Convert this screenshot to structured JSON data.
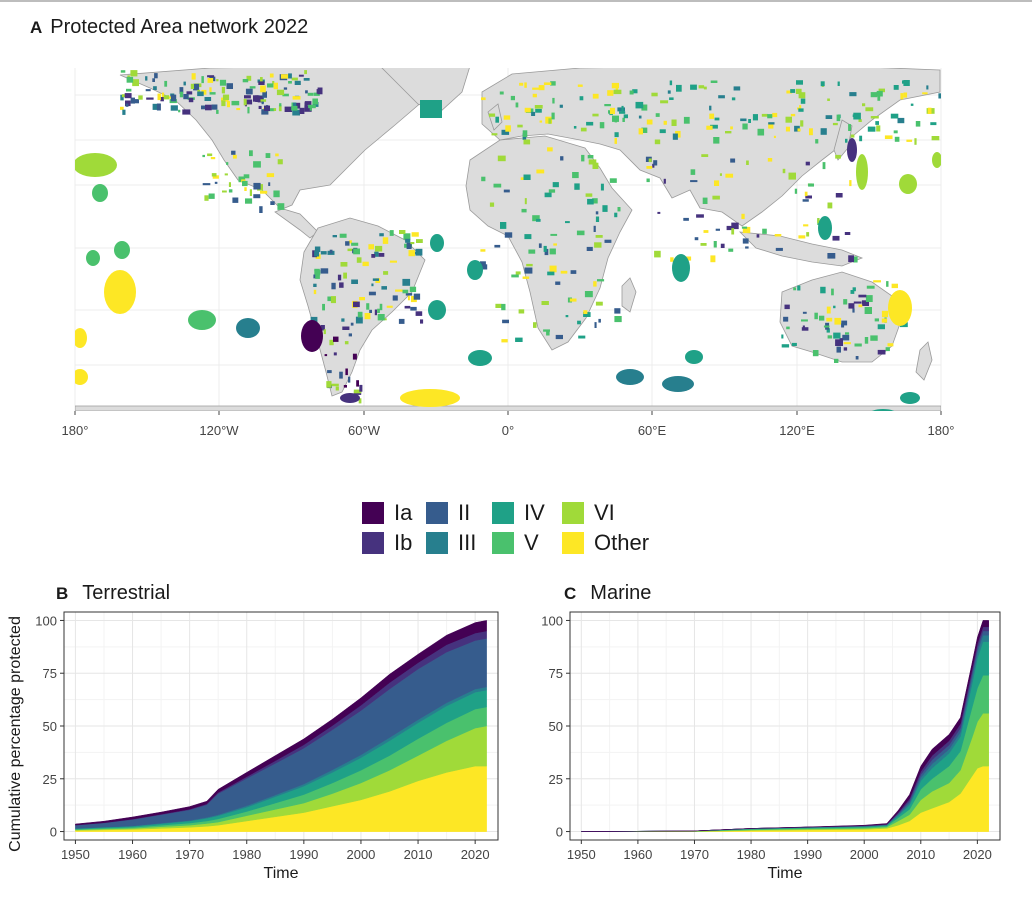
{
  "panel_a": {
    "letter": "A",
    "title": "Protected Area network 2022",
    "lon_labels": [
      "180°",
      "120°W",
      "60°W",
      "0°",
      "60°E",
      "120°E",
      "180°"
    ]
  },
  "legend": {
    "items": [
      {
        "label": "Ia",
        "color": "#440154"
      },
      {
        "label": "Ib",
        "color": "#46327e"
      },
      {
        "label": "II",
        "color": "#365c8d"
      },
      {
        "label": "III",
        "color": "#277f8e"
      },
      {
        "label": "IV",
        "color": "#1fa187"
      },
      {
        "label": "V",
        "color": "#4ac16d"
      },
      {
        "label": "VI",
        "color": "#a0da39"
      },
      {
        "label": "Other",
        "color": "#fde725"
      }
    ]
  },
  "panel_b": {
    "letter": "B",
    "title": "Terrestrial"
  },
  "panel_c": {
    "letter": "C",
    "title": "Marine"
  },
  "chart_data": [
    {
      "type": "area",
      "panel": "B",
      "title": "Terrestrial",
      "xlabel": "Time",
      "ylabel": "Cumulative percentage protected",
      "x_ticks": [
        1950,
        1960,
        1970,
        1980,
        1990,
        2000,
        2010,
        2020
      ],
      "y_ticks": [
        0,
        25,
        50,
        75,
        100
      ],
      "xlim": [
        1948,
        2024
      ],
      "ylim": [
        -4,
        104
      ],
      "stacked": true,
      "grid": true,
      "x": [
        1950,
        1955,
        1960,
        1965,
        1970,
        1973,
        1975,
        1980,
        1985,
        1990,
        1995,
        2000,
        2005,
        2010,
        2015,
        2020,
        2022
      ],
      "series": [
        {
          "name": "Other",
          "color": "#fde725",
          "values": [
            0.5,
            0.8,
            1,
            1.5,
            2,
            2.5,
            3,
            5,
            7,
            9,
            12,
            15,
            19,
            24,
            28,
            31,
            31
          ]
        },
        {
          "name": "VI",
          "color": "#a0da39",
          "values": [
            0.3,
            0.4,
            0.5,
            0.8,
            1,
            1.3,
            1.5,
            2.5,
            3.5,
            4.5,
            6,
            8,
            10,
            12,
            15,
            18,
            19
          ]
        },
        {
          "name": "V",
          "color": "#4ac16d",
          "values": [
            0.3,
            0.4,
            0.5,
            0.7,
            1,
            1.2,
            1.5,
            2,
            3,
            4,
            5,
            6,
            7,
            8,
            8.5,
            9,
            9
          ]
        },
        {
          "name": "IV",
          "color": "#1fa187",
          "values": [
            0.3,
            0.4,
            0.5,
            0.7,
            1,
            1.3,
            1.5,
            2,
            3,
            4,
            5,
            6,
            7,
            7.5,
            8,
            8,
            8
          ]
        },
        {
          "name": "III",
          "color": "#277f8e",
          "values": [
            0.1,
            0.1,
            0.2,
            0.3,
            0.3,
            0.4,
            0.5,
            0.7,
            0.8,
            1,
            1.2,
            1.3,
            1.5,
            1.5,
            1.5,
            1.5,
            1.5
          ]
        },
        {
          "name": "II",
          "color": "#365c8d",
          "values": [
            1.5,
            2,
            3,
            4,
            5,
            6,
            10,
            13,
            15,
            17,
            19,
            21,
            23,
            24,
            24,
            23,
            23
          ]
        },
        {
          "name": "Ib",
          "color": "#46327e",
          "values": [
            0.1,
            0.1,
            0.2,
            0.2,
            0.3,
            0.4,
            0.5,
            0.8,
            1.2,
            1.6,
            2,
            2.5,
            3,
            3,
            3.5,
            3.5,
            3.5
          ]
        },
        {
          "name": "Ia",
          "color": "#440154",
          "values": [
            0.5,
            0.7,
            1,
            1,
            1.2,
            1.3,
            1.5,
            2,
            2.5,
            2.8,
            3,
            3.5,
            4,
            4,
            4.5,
            5,
            5
          ]
        }
      ]
    },
    {
      "type": "area",
      "panel": "C",
      "title": "Marine",
      "xlabel": "Time",
      "x_ticks": [
        1950,
        1960,
        1970,
        1980,
        1990,
        2000,
        2010,
        2020
      ],
      "y_ticks": [
        0,
        25,
        50,
        75,
        100
      ],
      "xlim": [
        1948,
        2024
      ],
      "ylim": [
        -4,
        104
      ],
      "stacked": true,
      "grid": true,
      "x": [
        1950,
        1970,
        1980,
        1990,
        2000,
        2004,
        2006,
        2008,
        2010,
        2012,
        2015,
        2017,
        2019,
        2020,
        2021,
        2022
      ],
      "series": [
        {
          "name": "Other",
          "color": "#fde725",
          "values": [
            0,
            0,
            0.5,
            0.8,
            1,
            1.5,
            3,
            5,
            9,
            11,
            14,
            18,
            26,
            30,
            31,
            31
          ]
        },
        {
          "name": "VI",
          "color": "#a0da39",
          "values": [
            0,
            0.1,
            0.3,
            0.4,
            0.5,
            0.6,
            2,
            3,
            6,
            8,
            9,
            11,
            18,
            22,
            25,
            25
          ]
        },
        {
          "name": "V",
          "color": "#4ac16d",
          "values": [
            0,
            0.1,
            0.3,
            0.4,
            0.5,
            0.5,
            1.5,
            2.5,
            5,
            6,
            8,
            9,
            14,
            16,
            18,
            18
          ]
        },
        {
          "name": "IV",
          "color": "#1fa187",
          "values": [
            0,
            0.1,
            0.2,
            0.3,
            0.4,
            0.4,
            1,
            2,
            4,
            5,
            6,
            7,
            11,
            14,
            16,
            16
          ]
        },
        {
          "name": "III",
          "color": "#277f8e",
          "values": [
            0,
            0,
            0.1,
            0.1,
            0.1,
            0.1,
            0.5,
            1,
            1.5,
            2,
            2,
            2,
            3,
            3,
            3,
            3
          ]
        },
        {
          "name": "II",
          "color": "#365c8d",
          "values": [
            0,
            0,
            0.1,
            0.1,
            0.2,
            0.2,
            0.5,
            1,
            1.5,
            2,
            2,
            2,
            2,
            2,
            2,
            2
          ]
        },
        {
          "name": "Ib",
          "color": "#46327e",
          "values": [
            0,
            0,
            0,
            0,
            0.1,
            0.2,
            0.5,
            1,
            1.5,
            2,
            2,
            2,
            2,
            2,
            2,
            2
          ]
        },
        {
          "name": "Ia",
          "color": "#440154",
          "values": [
            0,
            0,
            0,
            0.1,
            0.2,
            0.3,
            1,
            2,
            2.5,
            3,
            3,
            3,
            3,
            3,
            3,
            3
          ]
        }
      ]
    }
  ]
}
